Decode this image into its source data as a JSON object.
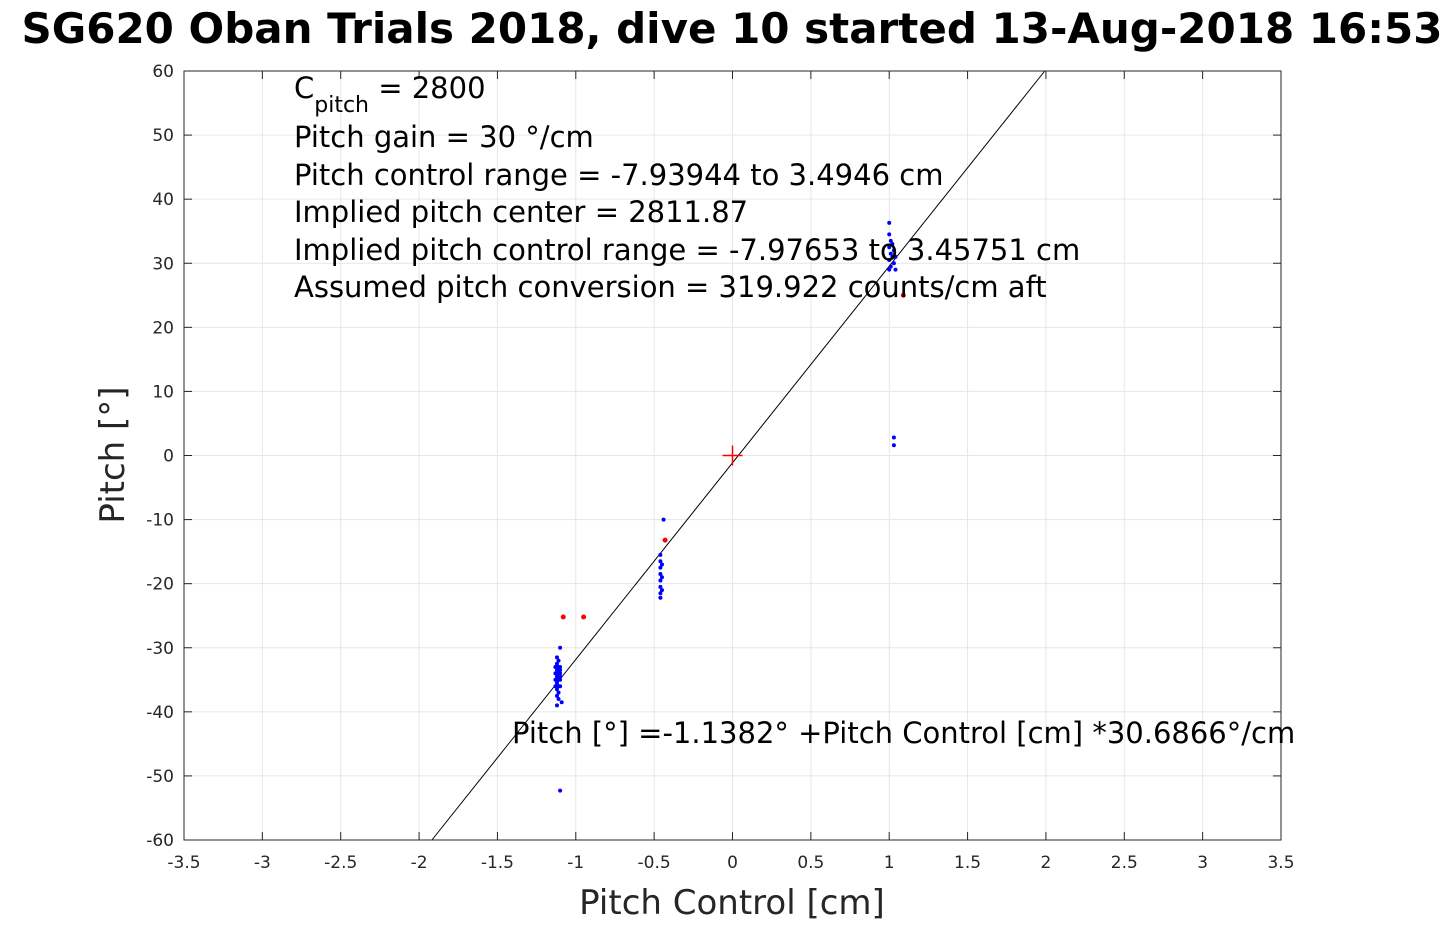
{
  "chart_data": {
    "type": "scatter",
    "title": "SG620 Oban Trials 2018, dive 10 started 13-Aug-2018 16:53",
    "xlabel": "Pitch Control [cm]",
    "ylabel": "Pitch [°]",
    "xlim": [
      -3.5,
      3.5
    ],
    "ylim": [
      -60,
      60
    ],
    "xticks": [
      -3.5,
      -3,
      -2.5,
      -2,
      -1.5,
      -1,
      -0.5,
      0,
      0.5,
      1,
      1.5,
      2,
      2.5,
      3,
      3.5
    ],
    "xtick_labels": [
      "-3.5",
      "-3",
      "-2.5",
      "-2",
      "-1.5",
      "-1",
      "-0.5",
      "0",
      "0.5",
      "1",
      "1.5",
      "2",
      "2.5",
      "3",
      "3.5"
    ],
    "yticks": [
      -60,
      -50,
      -40,
      -30,
      -20,
      -10,
      0,
      10,
      20,
      30,
      40,
      50,
      60
    ],
    "ytick_labels": [
      "-60",
      "-50",
      "-40",
      "-30",
      "-20",
      "-10",
      "0",
      "10",
      "20",
      "30",
      "40",
      "50",
      "60"
    ],
    "grid": true,
    "colors": {
      "fit_line": "#000000",
      "used": "#0000ff",
      "excluded": "#ff0000",
      "center": "#ff0000",
      "grid": "#e6e6e6",
      "axes": "#262626"
    },
    "fit_line": {
      "intercept": -1.1382,
      "slope": 30.6866
    },
    "center_marker": {
      "x": 0,
      "y": 0,
      "marker": "+"
    },
    "series": [
      {
        "color": "#0000ff",
        "points": [
          [
            -1.12,
            -31.5
          ],
          [
            -1.11,
            -32.0
          ],
          [
            -1.12,
            -32.5
          ],
          [
            -1.11,
            -33.0
          ],
          [
            -1.12,
            -33.5
          ],
          [
            -1.11,
            -34.0
          ],
          [
            -1.12,
            -34.5
          ],
          [
            -1.11,
            -35.0
          ],
          [
            -1.12,
            -35.5
          ],
          [
            -1.11,
            -36.0
          ],
          [
            -1.12,
            -36.5
          ],
          [
            -1.11,
            -37.0
          ],
          [
            -1.12,
            -37.5
          ],
          [
            -1.11,
            -38.0
          ],
          [
            -1.1,
            -33.0
          ],
          [
            -1.1,
            -34.0
          ],
          [
            -1.1,
            -35.0
          ],
          [
            -1.1,
            -33.5
          ],
          [
            -1.1,
            -34.5
          ],
          [
            -1.1,
            -36.0
          ],
          [
            -1.13,
            -34.0
          ],
          [
            -1.13,
            -35.0
          ],
          [
            -1.13,
            -36.0
          ],
          [
            -1.13,
            -33.0
          ],
          [
            -1.1,
            -30.0
          ],
          [
            -1.12,
            -39.0
          ],
          [
            -1.09,
            -38.5
          ],
          [
            -1.1,
            -52.3
          ],
          [
            -0.46,
            -15.5
          ],
          [
            -0.46,
            -16.5
          ],
          [
            -0.46,
            -17.5
          ],
          [
            -0.46,
            -18.5
          ],
          [
            -0.46,
            -19.5
          ],
          [
            -0.46,
            -20.5
          ],
          [
            -0.46,
            -21.5
          ],
          [
            -0.46,
            -22.2
          ],
          [
            -0.45,
            -17.0
          ],
          [
            -0.45,
            -19.0
          ],
          [
            -0.45,
            -21.0
          ],
          [
            -0.44,
            -10.0
          ],
          [
            1.0,
            36.3
          ],
          [
            1.0,
            34.5
          ],
          [
            1.01,
            33.5
          ],
          [
            1.0,
            32.5
          ],
          [
            1.01,
            31.5
          ],
          [
            1.0,
            30.5
          ],
          [
            1.01,
            29.5
          ],
          [
            1.0,
            29.0
          ],
          [
            1.02,
            33.0
          ],
          [
            1.02,
            31.0
          ],
          [
            1.03,
            30.0
          ],
          [
            1.03,
            32.0
          ],
          [
            1.04,
            29.0
          ],
          [
            1.04,
            31.0
          ],
          [
            1.03,
            2.8
          ],
          [
            1.03,
            1.6
          ]
        ]
      },
      {
        "color": "#ff0000",
        "points": [
          [
            -1.08,
            -25.2
          ],
          [
            -0.95,
            -25.2
          ],
          [
            -0.43,
            -13.2
          ],
          [
            1.09,
            25.0
          ]
        ]
      }
    ],
    "annotations": {
      "c_pitch_label": "C",
      "c_pitch_sub": "pitch",
      "c_pitch_value": " = 2800",
      "pitch_gain": "Pitch gain = 30 °/cm",
      "control_range": "Pitch control range = -7.93944 to 3.4946 cm",
      "implied_center": "Implied pitch center = 2811.87",
      "implied_range": "Implied pitch control range = -7.97653 to 3.45751 cm",
      "conversion": "Assumed pitch conversion = 319.922 counts/cm aft",
      "fit_equation": "Pitch [°] =-1.1382° +Pitch Control [cm] *30.6866°/cm"
    }
  }
}
